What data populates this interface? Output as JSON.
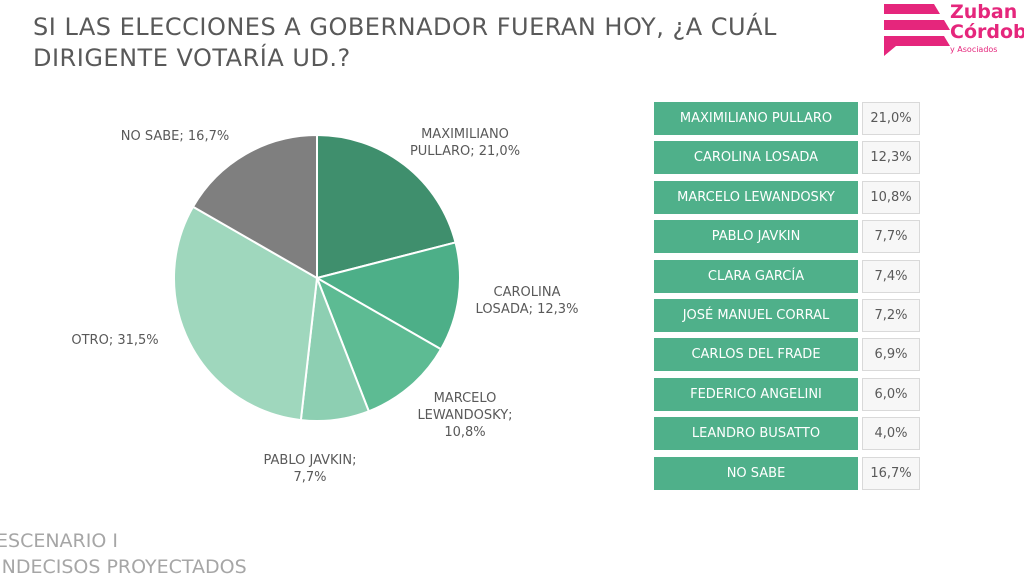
{
  "title": "SI LAS ELECCIONES A GOBERNADOR FUERAN HOY, ¿A CUÁL DIRIGENTE VOTARÍA UD.?",
  "logo": {
    "line1": "Zuban",
    "line2": "Córdoba",
    "line3": "y Asociados",
    "color": "#e5267c"
  },
  "chart_data": {
    "type": "pie",
    "title": "SI LAS ELECCIONES A GOBERNADOR FUERAN HOY, ¿A CUÁL DIRIGENTE VOTARÍA UD.?",
    "slices": [
      {
        "label": "MAXIMILIANO PULLARO; 21,0%",
        "value": 21.0,
        "color": "#3f8f6d"
      },
      {
        "label": "CAROLINA LOSADA; 12,3%",
        "value": 12.3,
        "color": "#4daf88"
      },
      {
        "label": "MARCELO LEWANDOSKY; 10,8%",
        "value": 10.8,
        "color": "#5dbb93"
      },
      {
        "label": "PABLO JAVKIN; 7,7%",
        "value": 7.7,
        "color": "#8dcfb2"
      },
      {
        "label": "OTRO; 31,5%",
        "value": 31.5,
        "color": "#9fd7bd"
      },
      {
        "label": "NO SABE; 16,7%",
        "value": 16.7,
        "color": "#7f7f7f"
      }
    ]
  },
  "table": [
    {
      "name": "MAXIMILIANO PULLARO",
      "value": "21,0%"
    },
    {
      "name": "CAROLINA LOSADA",
      "value": "12,3%"
    },
    {
      "name": "MARCELO LEWANDOSKY",
      "value": "10,8%"
    },
    {
      "name": "PABLO JAVKIN",
      "value": "7,7%"
    },
    {
      "name": "CLARA GARCÍA",
      "value": "7,4%"
    },
    {
      "name": "JOSÉ MANUEL CORRAL",
      "value": "7,2%"
    },
    {
      "name": "CARLOS DEL FRADE",
      "value": "6,9%"
    },
    {
      "name": "FEDERICO ANGELINI",
      "value": "6,0%"
    },
    {
      "name": "LEANDRO BUSATTO",
      "value": "4,0%"
    },
    {
      "name": "NO SABE",
      "value": "16,7%"
    }
  ],
  "footer": {
    "line1": "ESCENARIO I",
    "line2": "INDECISOS PROYECTADOS"
  }
}
